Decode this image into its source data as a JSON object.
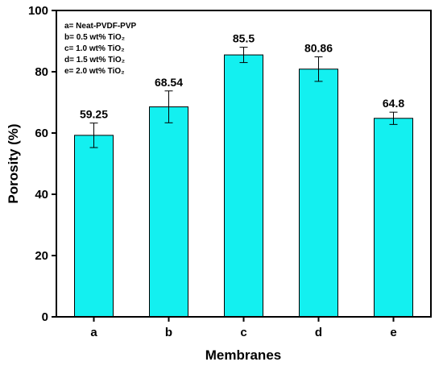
{
  "chart_data": {
    "type": "bar",
    "xlabel": "Membranes",
    "ylabel": "Porosity (%)",
    "ylim": [
      0,
      100
    ],
    "yticks": [
      0,
      20,
      40,
      60,
      80,
      100
    ],
    "categories": [
      "a",
      "b",
      "c",
      "d",
      "e"
    ],
    "values": [
      59.25,
      68.54,
      85.5,
      80.86,
      64.8
    ],
    "errors": [
      4.0,
      5.2,
      2.5,
      4.0,
      2.0
    ],
    "data_labels": [
      "59.25",
      "68.54",
      "85.5",
      "80.86",
      "64.8"
    ],
    "legend": [
      "a= Neat-PVDF-PVP",
      "b= 0.5 wt% TiO₂",
      "c= 1.0 wt% TiO₂",
      "d= 1.5 wt% TiO₂",
      "e= 2.0 wt% TiO₂"
    ],
    "legend_position": "top-left",
    "bar_color": "#13F0F0",
    "grid": false
  }
}
